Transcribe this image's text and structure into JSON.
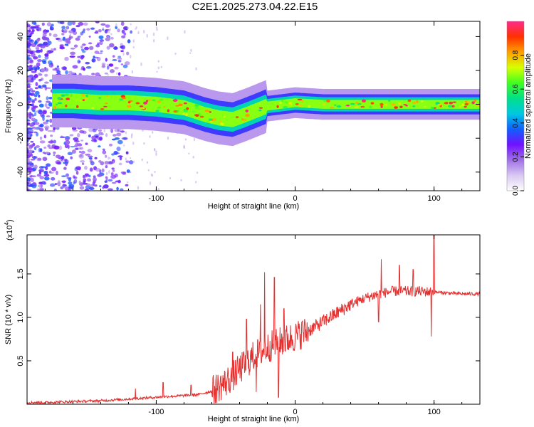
{
  "title": "C2E1.2025.273.04.22.E15",
  "chart_data": [
    {
      "type": "heatmap",
      "xlabel": "Height of straight line (km)",
      "ylabel": "Frequency (Hz)",
      "xlim": [
        -193,
        133
      ],
      "ylim": [
        -51,
        49
      ],
      "xticks": [
        -100,
        0,
        100
      ],
      "xtick_labels": [
        "-100",
        "0",
        "100"
      ],
      "yticks": [
        -40,
        -20,
        0,
        20,
        40
      ],
      "ytick_labels": [
        "-40",
        "-20",
        "0",
        "20",
        "40"
      ],
      "colorbar": {
        "label": "Normalized spectral amplitude",
        "range": [
          0,
          1
        ],
        "ticks": [
          0.0,
          0.2,
          0.4,
          0.6,
          0.8
        ],
        "tick_labels": [
          "0.0",
          "0.2",
          "0.4",
          "0.6",
          "0.8"
        ],
        "colormap": [
          "#ffffff",
          "#d8c8f2",
          "#a070e8",
          "#7010ff",
          "#1060ff",
          "#00c8e0",
          "#00e08a",
          "#40ff20",
          "#d8ff00",
          "#ffa000",
          "#ff3000",
          "#ff2a8a"
        ]
      },
      "ridge": {
        "x": [
          -175,
          -160,
          -140,
          -120,
          -100,
          -80,
          -65,
          -55,
          -45,
          -35,
          -20,
          0,
          20,
          50,
          80,
          100,
          133
        ],
        "freq": [
          2,
          2,
          1,
          1,
          0,
          -2,
          -6,
          -8,
          -9,
          -6,
          -1,
          1,
          0,
          0,
          0,
          0,
          0
        ]
      }
    },
    {
      "type": "line",
      "xlabel": "Height of straight line (km)",
      "ylabel": "SNR (10 * v/v)",
      "scale_label": "(x10",
      "scale_exponent": "4",
      "xlim": [
        -193,
        133
      ],
      "ylim": [
        0,
        1.95
      ],
      "xticks": [
        -100,
        0,
        100
      ],
      "xtick_labels": [
        "-100",
        "0",
        "100"
      ],
      "yticks": [
        0.5,
        1.0,
        1.5
      ],
      "ytick_labels": [
        "0.5",
        "1.0",
        "1.5"
      ],
      "series": [
        {
          "name": "SNR",
          "color": "#e53030",
          "envelope_x": [
            -193,
            -180,
            -160,
            -140,
            -120,
            -100,
            -80,
            -70,
            -60,
            -50,
            -40,
            -30,
            -20,
            -10,
            0,
            10,
            20,
            30,
            40,
            50,
            60,
            70,
            80,
            90,
            100,
            110,
            120,
            133
          ],
          "envelope_y": [
            0.02,
            0.02,
            0.03,
            0.04,
            0.06,
            0.08,
            0.1,
            0.11,
            0.15,
            0.25,
            0.4,
            0.55,
            0.65,
            0.72,
            0.78,
            0.85,
            0.95,
            1.05,
            1.15,
            1.22,
            1.27,
            1.3,
            1.3,
            1.3,
            1.29,
            1.28,
            1.27,
            1.27
          ],
          "spikes": [
            {
              "x": -115,
              "y": 0.18
            },
            {
              "x": -95,
              "y": 0.25
            },
            {
              "x": -75,
              "y": 0.22
            },
            {
              "x": -45,
              "y": 0.6
            },
            {
              "x": -35,
              "y": 0.98
            },
            {
              "x": -25,
              "y": 1.15
            },
            {
              "x": -22,
              "y": 1.52
            },
            {
              "x": -15,
              "y": 1.46
            },
            {
              "x": -8,
              "y": 1.1
            },
            {
              "x": -12,
              "y": 0.08
            },
            {
              "x": -28,
              "y": 0.14
            },
            {
              "x": 5,
              "y": 0.95
            },
            {
              "x": 60,
              "y": 0.95
            },
            {
              "x": 62,
              "y": 1.67
            },
            {
              "x": 75,
              "y": 1.6
            },
            {
              "x": 85,
              "y": 1.55
            },
            {
              "x": 98,
              "y": 0.78
            },
            {
              "x": 100,
              "y": 1.95
            }
          ]
        }
      ]
    }
  ]
}
